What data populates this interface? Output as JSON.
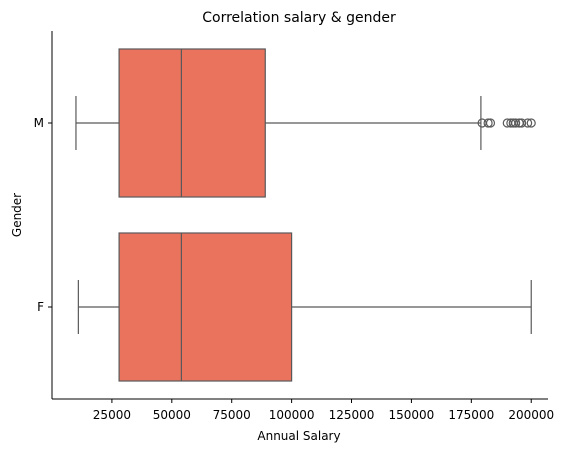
{
  "chart_data": {
    "type": "boxplot",
    "orientation": "horizontal",
    "title": "Correlation salary & gender",
    "xlabel": "Annual Salary",
    "ylabel": "Gender",
    "xlim": [
      0,
      207000
    ],
    "xticks": [
      25000,
      50000,
      75000,
      100000,
      125000,
      150000,
      175000,
      200000
    ],
    "xtick_labels": [
      "25000",
      "50000",
      "75000",
      "100000",
      "125000",
      "150000",
      "175000",
      "200000"
    ],
    "categories": [
      "M",
      "F"
    ],
    "box_color": "#EA735E",
    "line_color": "#595959",
    "boxes": [
      {
        "category": "M",
        "whisker_low": 10000,
        "q1": 28000,
        "median": 54000,
        "q3": 89000,
        "whisker_high": 179000,
        "outliers": [
          179500,
          182000,
          183000,
          190000,
          191500,
          192500,
          193500,
          195000,
          196000,
          198500,
          200000
        ]
      },
      {
        "category": "F",
        "whisker_low": 11000,
        "q1": 28000,
        "median": 54000,
        "q3": 100000,
        "whisker_high": 200000,
        "outliers": []
      }
    ],
    "grid": false,
    "legend": "none"
  }
}
